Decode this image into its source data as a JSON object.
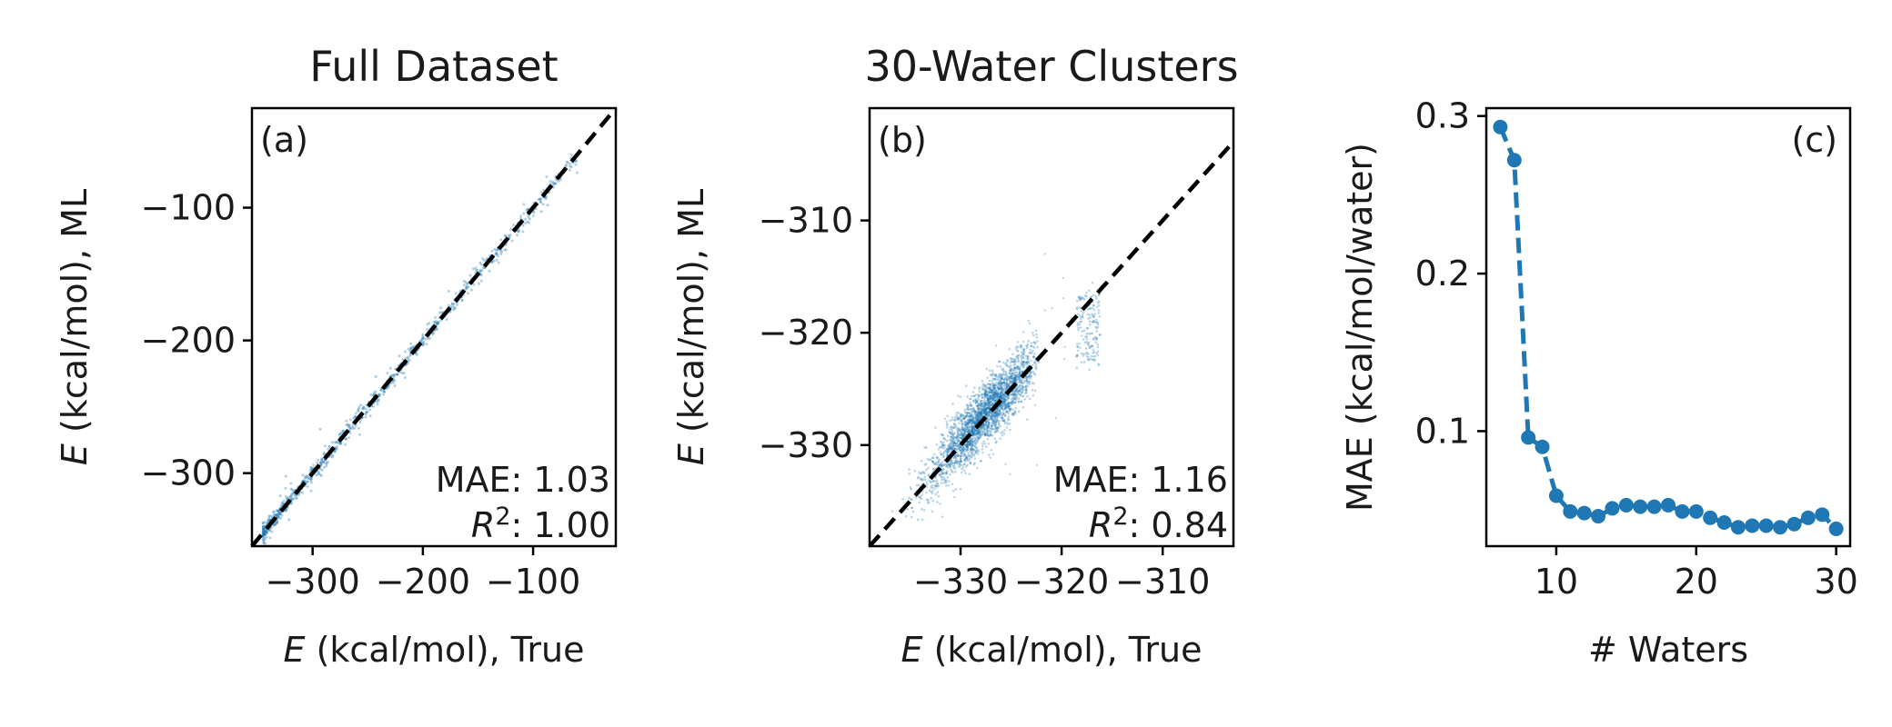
{
  "figure": {
    "panels": [
      "a",
      "b",
      "c"
    ]
  },
  "chart_data": [
    {
      "type": "scatter",
      "panel_label": "(a)",
      "title": "Full Dataset",
      "xlabel": "E (kcal/mol), True",
      "ylabel": "E (kcal/mol), ML",
      "xlim": [
        -355,
        -25
      ],
      "ylim": [
        -355,
        -25
      ],
      "xticks": [
        -300,
        -200,
        -100
      ],
      "yticks": [
        -300,
        -200,
        -100
      ],
      "xtick_labels": [
        "−300",
        "−200",
        "−100"
      ],
      "ytick_labels": [
        "−300",
        "−200",
        "−100"
      ],
      "reference_line": "y = x (black dashed)",
      "stats": {
        "mae": "MAE: 1.03",
        "r2": "R²: 1.00"
      },
      "point_color": "#1f77b4",
      "points_distribution": {
        "description": "dense points along y = x",
        "true_range": [
          -345,
          -60
        ],
        "residual_spread": 3
      }
    },
    {
      "type": "scatter",
      "panel_label": "(b)",
      "title": "30-Water Clusters",
      "xlabel": "E (kcal/mol), True",
      "ylabel": "E (kcal/mol), ML",
      "xlim": [
        -339,
        -303
      ],
      "ylim": [
        -339,
        -300
      ],
      "xticks": [
        -330,
        -320,
        -310
      ],
      "yticks": [
        -330,
        -320,
        -310
      ],
      "xtick_labels": [
        "−330",
        "−320",
        "−310"
      ],
      "ytick_labels": [
        "−330",
        "−320",
        "−310"
      ],
      "reference_line": "y = x (black dashed)",
      "stats": {
        "mae": "MAE: 1.16",
        "r2": "R²: 0.84"
      },
      "point_color": "#1f77b4",
      "points_distribution": {
        "main_cluster": {
          "true_range": [
            -336,
            -322.5
          ],
          "pred_center": -327,
          "spread": 2.2
        },
        "secondary_cluster": {
          "true_range": [
            -318.5,
            -316.2
          ],
          "pred_range": [
            -322.5,
            -316.5
          ]
        }
      }
    },
    {
      "type": "line",
      "panel_label": "(c)",
      "title": "",
      "xlabel": "# Waters",
      "ylabel": "MAE (kcal/mol/water)",
      "xlim": [
        5,
        31
      ],
      "ylim": [
        0.027,
        0.305
      ],
      "xticks": [
        10,
        20,
        30
      ],
      "yticks": [
        0.1,
        0.2,
        0.3
      ],
      "xtick_labels": [
        "10",
        "20",
        "30"
      ],
      "ytick_labels": [
        "0.1",
        "0.2",
        "0.3"
      ],
      "line_style": "dashed with markers",
      "color": "#1f77b4",
      "x": [
        6,
        7,
        8,
        9,
        10,
        11,
        12,
        13,
        14,
        15,
        16,
        17,
        18,
        19,
        20,
        21,
        22,
        23,
        24,
        25,
        26,
        27,
        28,
        29,
        30
      ],
      "y": [
        0.293,
        0.272,
        0.096,
        0.09,
        0.059,
        0.049,
        0.048,
        0.046,
        0.051,
        0.053,
        0.052,
        0.052,
        0.053,
        0.049,
        0.049,
        0.045,
        0.042,
        0.039,
        0.04,
        0.04,
        0.039,
        0.041,
        0.045,
        0.047,
        0.038
      ]
    }
  ]
}
